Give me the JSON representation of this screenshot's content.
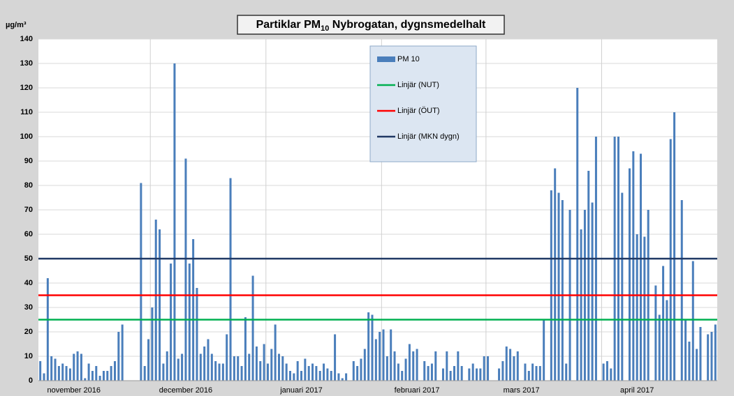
{
  "chart_data": {
    "type": "bar",
    "title_parts": [
      "Partiklar  PM",
      "10",
      " Nybrogatan, dygnsmedelhalt"
    ],
    "y_unit": "µg/m³",
    "categories": [
      null,
      null,
      null,
      null,
      null,
      null,
      null,
      null,
      null,
      "november 2016",
      null,
      null,
      null,
      null,
      null,
      null,
      null,
      null,
      null,
      null,
      null,
      null,
      null,
      null,
      null,
      null,
      null,
      null,
      null,
      null,
      null,
      null,
      null,
      null,
      null,
      null,
      null,
      null,
      null,
      "december 2016",
      null,
      null,
      null,
      null,
      null,
      null,
      null,
      null,
      null,
      null,
      null,
      null,
      null,
      null,
      null,
      null,
      null,
      null,
      null,
      null,
      null,
      null,
      null,
      null,
      null,
      null,
      null,
      null,
      null,
      null,
      "januari 2017",
      null,
      null,
      null,
      null,
      null,
      null,
      null,
      null,
      null,
      null,
      null,
      null,
      null,
      null,
      null,
      null,
      null,
      null,
      null,
      null,
      null,
      null,
      null,
      null,
      null,
      null,
      null,
      null,
      null,
      null,
      "februari 2017",
      null,
      null,
      null,
      null,
      null,
      null,
      null,
      null,
      null,
      null,
      null,
      null,
      null,
      null,
      null,
      null,
      null,
      null,
      null,
      null,
      null,
      null,
      null,
      null,
      null,
      null,
      null,
      "mars 2017",
      null,
      null,
      null,
      null,
      null,
      null,
      null,
      null,
      null,
      null,
      null,
      null,
      null,
      null,
      null,
      null,
      null,
      null,
      null,
      null,
      null,
      null,
      null,
      null,
      null,
      null,
      null,
      null,
      null,
      null,
      "april 2017",
      null,
      null,
      null,
      null,
      null,
      null,
      null,
      null,
      null,
      null,
      null,
      null,
      null,
      null,
      null,
      null,
      null,
      null,
      null,
      null,
      null
    ],
    "series": [
      {
        "name": "PM 10",
        "color": "#4a7ebb",
        "values": [
          8,
          3,
          42,
          10,
          9,
          6,
          7,
          6,
          5,
          11,
          12,
          11,
          1,
          7,
          4,
          6,
          2,
          4,
          4,
          6,
          8,
          20,
          23,
          null,
          null,
          null,
          null,
          81,
          6,
          17,
          30,
          66,
          62,
          7,
          12,
          48,
          130,
          9,
          11,
          91,
          48,
          58,
          38,
          11,
          14,
          17,
          11,
          8,
          7,
          7,
          19,
          83,
          10,
          10,
          6,
          26,
          11,
          43,
          14,
          8,
          15,
          7,
          13,
          23,
          11,
          10,
          7,
          4,
          3,
          8,
          4,
          9,
          6,
          7,
          6,
          4,
          7,
          5,
          4,
          19,
          3,
          1,
          3,
          null,
          8,
          6,
          9,
          13,
          28,
          27,
          17,
          20,
          21,
          10,
          21,
          12,
          7,
          4,
          9,
          15,
          12,
          13,
          null,
          8,
          6,
          7,
          12,
          null,
          5,
          12,
          4,
          6,
          12,
          6,
          null,
          5,
          7,
          5,
          5,
          10,
          10,
          null,
          null,
          5,
          8,
          14,
          13,
          10,
          12,
          null,
          7,
          4,
          7,
          6,
          6,
          25,
          null,
          78,
          87,
          77,
          74,
          7,
          70,
          null,
          120,
          62,
          70,
          86,
          73,
          100,
          null,
          7,
          8,
          5,
          100,
          100,
          77,
          null,
          87,
          94,
          60,
          93,
          59,
          70,
          null,
          39,
          27,
          47,
          33,
          99,
          110,
          null,
          74,
          25,
          16,
          49,
          13,
          22,
          null,
          19,
          20,
          23
        ]
      },
      {
        "name": "Linjär (NUT)",
        "color": "#00b050",
        "type": "line",
        "value": 25
      },
      {
        "name": "Linjär (ÖUT)",
        "color": "#ff0000",
        "type": "line",
        "value": 35
      },
      {
        "name": "Linjär (MKN dygn)",
        "color": "#1f3864",
        "type": "line",
        "value": 50
      }
    ],
    "ylim": [
      0,
      140
    ],
    "yticks": [
      0,
      10,
      20,
      30,
      40,
      50,
      60,
      70,
      80,
      90,
      100,
      110,
      120,
      130,
      140
    ],
    "grid": true
  }
}
